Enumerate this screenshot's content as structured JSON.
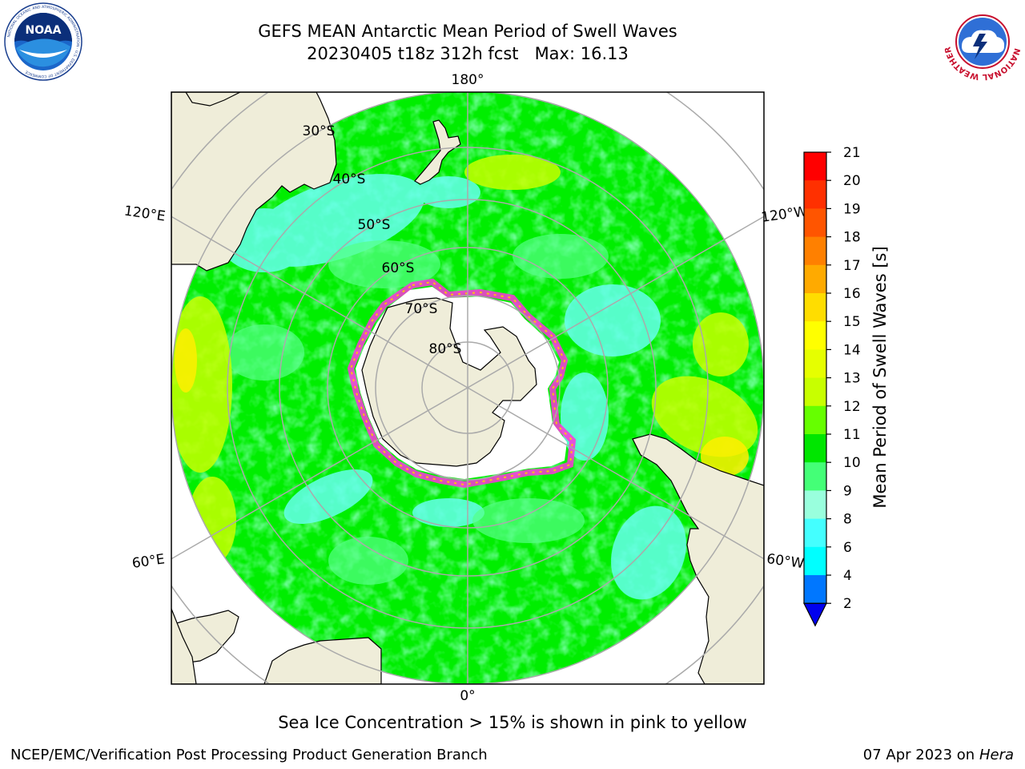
{
  "header": {
    "title_line1": "GEFS MEAN Antarctic Mean Period of Swell Waves",
    "title_line2": "20230405 t18z 312h fcst   Max: 16.13"
  },
  "logos": {
    "left": {
      "text": "NOAA",
      "ring_text": "NATIONAL OCEANIC AND ATMOSPHERIC ADMINISTRATION · U.S. DEPARTMENT OF COMMERCE"
    },
    "right": {
      "ring_text": "NATIONAL WEATHER SERVICE"
    }
  },
  "map": {
    "projection": "south-polar-stereographic",
    "lon_labels": {
      "top": "180°",
      "bottom": "0°",
      "upper_left": "120°E",
      "lower_left": "60°E",
      "upper_right": "120°W",
      "lower_right": "60°W"
    },
    "lat_labels": [
      "30°S",
      "40°S",
      "50°S",
      "60°S",
      "70°S",
      "80°S"
    ],
    "colors": {
      "ocean_main": "#00ee00",
      "land": "#efedd9",
      "ice_shelf": "#ffffff",
      "ice_edge": "#ff33dd",
      "grid": "#aaaaaa"
    }
  },
  "colorbar": {
    "label": "Mean Period of Swell Waves [s]",
    "ticks": [
      "21",
      "20",
      "19",
      "18",
      "17",
      "16",
      "15",
      "14",
      "13",
      "12",
      "11",
      "10",
      "9",
      "8",
      "6",
      "4",
      "2"
    ],
    "colors": [
      "#ff0000",
      "#ff3000",
      "#ff5500",
      "#ff8000",
      "#ffaa00",
      "#ffdd00",
      "#ffff00",
      "#e6ff00",
      "#c8ff00",
      "#66ff00",
      "#00e600",
      "#44ff77",
      "#99ffdd",
      "#44ffff",
      "#00ffff",
      "#0077ff"
    ],
    "extend_color": "#0000ee"
  },
  "caption": "Sea Ice Concentration > 15% is shown in pink to yellow",
  "footer": {
    "left": "NCEP/EMC/Verification Post Processing Product Generation Branch",
    "right_prefix": "07 Apr 2023 on ",
    "right_italic": "Hera"
  }
}
